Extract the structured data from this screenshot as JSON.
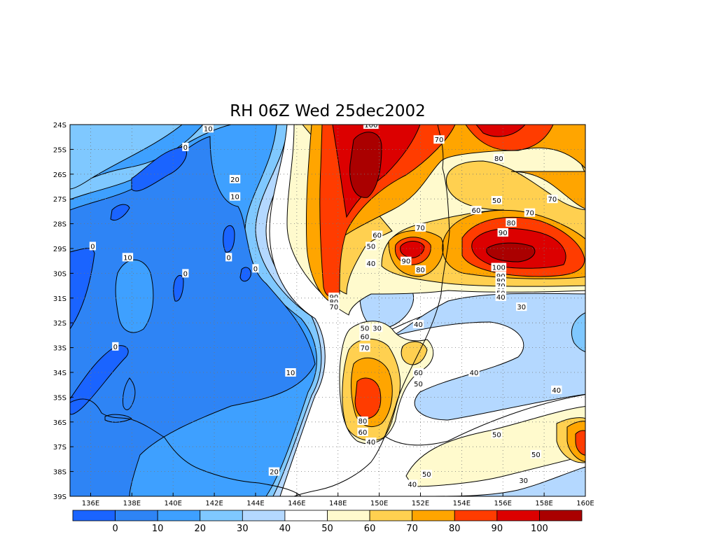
{
  "chart_data": {
    "type": "heatmap",
    "title": "RH 06Z Wed 25dec2002",
    "variable": "RH",
    "x_ticks": [
      "136E",
      "138E",
      "140E",
      "142E",
      "144E",
      "146E",
      "148E",
      "150E",
      "152E",
      "154E",
      "156E",
      "158E",
      "160E"
    ],
    "y_ticks": [
      "24S",
      "25S",
      "26S",
      "27S",
      "28S",
      "29S",
      "30S",
      "31S",
      "32S",
      "33S",
      "34S",
      "35S",
      "36S",
      "37S",
      "38S",
      "39S"
    ],
    "xlim": [
      135,
      160
    ],
    "ylim": [
      -39,
      -24
    ],
    "grid": true,
    "colorbar": {
      "levels": [
        0,
        10,
        20,
        30,
        40,
        50,
        60,
        70,
        80,
        90,
        100
      ],
      "labels": [
        "0",
        "10",
        "20",
        "30",
        "40",
        "50",
        "60",
        "70",
        "80",
        "90",
        "100"
      ],
      "colors": [
        "#1a64ff",
        "#2e84f5",
        "#3ea0ff",
        "#7fc8ff",
        "#b4d8ff",
        "#ffffff",
        "#fffacd",
        "#ffd050",
        "#ffa500",
        "#ff3c00",
        "#dc0000",
        "#aa0000"
      ]
    },
    "contour_labels": [
      {
        "text": "10",
        "lon": 141.7,
        "lat": -24.15
      },
      {
        "text": "0",
        "lon": 140.6,
        "lat": -24.9
      },
      {
        "text": "20",
        "lon": 143.0,
        "lat": -26.2
      },
      {
        "text": "10",
        "lon": 143.0,
        "lat": -26.9
      },
      {
        "text": "0",
        "lon": 136.1,
        "lat": -28.9
      },
      {
        "text": "10",
        "lon": 137.8,
        "lat": -29.35
      },
      {
        "text": "0",
        "lon": 142.7,
        "lat": -29.35
      },
      {
        "text": "0",
        "lon": 140.6,
        "lat": -30.0
      },
      {
        "text": "0",
        "lon": 144.0,
        "lat": -29.8
      },
      {
        "text": "0",
        "lon": 137.2,
        "lat": -32.95
      },
      {
        "text": "10",
        "lon": 145.7,
        "lat": -34.0
      },
      {
        "text": "20",
        "lon": 144.9,
        "lat": -38.0
      },
      {
        "text": "100",
        "lon": 149.6,
        "lat": -24.0
      },
      {
        "text": "70",
        "lon": 152.9,
        "lat": -24.6
      },
      {
        "text": "80",
        "lon": 155.8,
        "lat": -25.35
      },
      {
        "text": "50",
        "lon": 155.7,
        "lat": -27.05
      },
      {
        "text": "60",
        "lon": 154.7,
        "lat": -27.45
      },
      {
        "text": "70",
        "lon": 158.4,
        "lat": -27.0
      },
      {
        "text": "70",
        "lon": 157.3,
        "lat": -27.55
      },
      {
        "text": "80",
        "lon": 156.4,
        "lat": -27.95
      },
      {
        "text": "90",
        "lon": 156.0,
        "lat": -28.35
      },
      {
        "text": "70",
        "lon": 152.0,
        "lat": -28.15
      },
      {
        "text": "60",
        "lon": 149.9,
        "lat": -28.45
      },
      {
        "text": "50",
        "lon": 149.6,
        "lat": -28.9
      },
      {
        "text": "40",
        "lon": 149.6,
        "lat": -29.6
      },
      {
        "text": "90",
        "lon": 151.3,
        "lat": -29.5
      },
      {
        "text": "80",
        "lon": 152.0,
        "lat": -29.85
      },
      {
        "text": "100",
        "lon": 155.8,
        "lat": -29.75
      },
      {
        "text": "90",
        "lon": 155.9,
        "lat": -30.1
      },
      {
        "text": "80",
        "lon": 155.9,
        "lat": -30.3
      },
      {
        "text": "70",
        "lon": 155.9,
        "lat": -30.5
      },
      {
        "text": "60",
        "lon": 155.9,
        "lat": -30.7
      },
      {
        "text": "50",
        "lon": 155.9,
        "lat": -30.8
      },
      {
        "text": "40",
        "lon": 155.9,
        "lat": -30.95
      },
      {
        "text": "30",
        "lon": 156.9,
        "lat": -31.35
      },
      {
        "text": "90",
        "lon": 147.8,
        "lat": -30.95
      },
      {
        "text": "80",
        "lon": 147.8,
        "lat": -31.15
      },
      {
        "text": "70",
        "lon": 147.8,
        "lat": -31.35
      },
      {
        "text": "50",
        "lon": 149.3,
        "lat": -32.2
      },
      {
        "text": "30",
        "lon": 149.9,
        "lat": -32.2
      },
      {
        "text": "60",
        "lon": 149.3,
        "lat": -32.55
      },
      {
        "text": "70",
        "lon": 149.3,
        "lat": -33.0
      },
      {
        "text": "40",
        "lon": 151.9,
        "lat": -32.05
      },
      {
        "text": "60",
        "lon": 151.9,
        "lat": -34.0
      },
      {
        "text": "50",
        "lon": 151.9,
        "lat": -34.45
      },
      {
        "text": "40",
        "lon": 154.6,
        "lat": -34.0
      },
      {
        "text": "40",
        "lon": 158.6,
        "lat": -34.7
      },
      {
        "text": "80",
        "lon": 149.2,
        "lat": -35.95
      },
      {
        "text": "60",
        "lon": 149.2,
        "lat": -36.4
      },
      {
        "text": "40",
        "lon": 149.6,
        "lat": -36.8
      },
      {
        "text": "50",
        "lon": 155.7,
        "lat": -36.5
      },
      {
        "text": "50",
        "lon": 157.6,
        "lat": -37.3
      },
      {
        "text": "50",
        "lon": 152.3,
        "lat": -38.1
      },
      {
        "text": "30",
        "lon": 157.0,
        "lat": -38.35
      },
      {
        "text": "40",
        "lon": 151.6,
        "lat": -38.5
      }
    ]
  }
}
